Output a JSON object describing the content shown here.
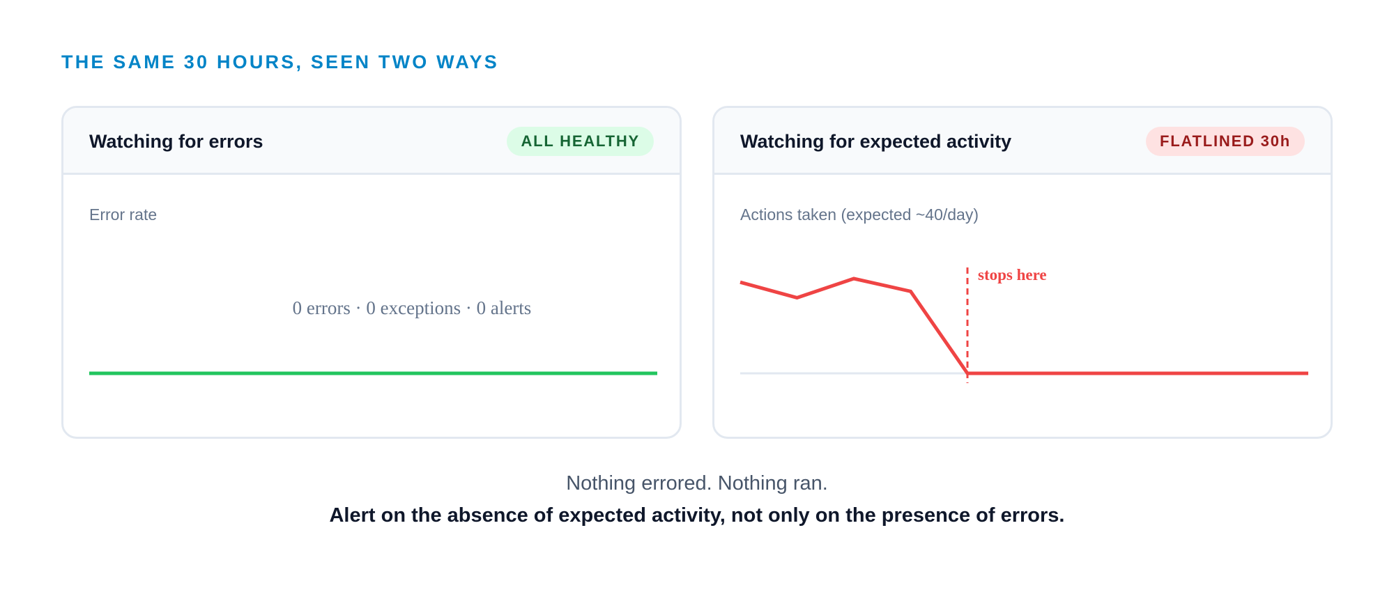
{
  "heading": "THE SAME 30 HOURS, SEEN TWO WAYS",
  "colors": {
    "accent": "#0284c7",
    "healthy": "#22c55e",
    "alert": "#ef4444",
    "baseline": "#e2e8f0"
  },
  "errors_panel": {
    "title": "Watching for errors",
    "badge": "ALL HEALTHY",
    "metric_label": "Error rate",
    "summary": "0 errors · 0 exceptions · 0 alerts",
    "series": {
      "values": [
        0,
        0
      ]
    }
  },
  "activity_panel": {
    "title": "Watching for expected activity",
    "badge": "FLATLINED 30h",
    "metric_label": "Actions taken (expected ~40/day)",
    "annotation": "stops here",
    "series": {
      "values": [
        1.0,
        0.83,
        1.04,
        0.9,
        0,
        0,
        0,
        0,
        0,
        0,
        0
      ]
    },
    "stop_index": 4
  },
  "footer": {
    "line1": "Nothing errored. Nothing ran.",
    "line2": "Alert on the absence of expected activity, not only on the presence of errors."
  }
}
